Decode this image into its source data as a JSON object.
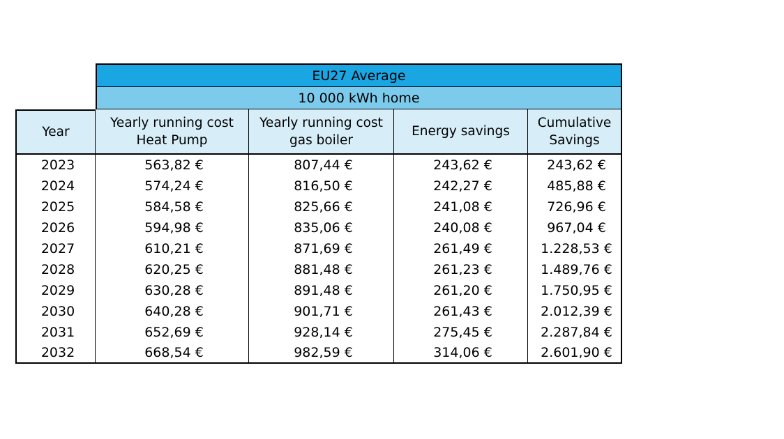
{
  "table": {
    "title": "EU27 Average",
    "subtitle": "10 000 kWh home",
    "headers": [
      "Year",
      "Yearly running cost\nHeat Pump",
      "Yearly running cost\ngas boiler",
      "Energy savings",
      "Cumulative\nSavings"
    ],
    "rows": [
      [
        "2023",
        "563,82 €",
        "807,44 €",
        "243,62 €",
        "243,62 €"
      ],
      [
        "2024",
        "574,24 €",
        "816,50 €",
        "242,27 €",
        "485,88 €"
      ],
      [
        "2025",
        "584,58 €",
        "825,66 €",
        "241,08 €",
        "726,96 €"
      ],
      [
        "2026",
        "594,98 €",
        "835,06 €",
        "240,08 €",
        "967,04 €"
      ],
      [
        "2027",
        "610,21 €",
        "871,69 €",
        "261,49 €",
        "1.228,53 €"
      ],
      [
        "2028",
        "620,25 €",
        "881,48 €",
        "261,23 €",
        "1.489,76 €"
      ],
      [
        "2029",
        "630,28 €",
        "891,48 €",
        "261,20 €",
        "1.750,95 €"
      ],
      [
        "2030",
        "640,28 €",
        "901,71 €",
        "261,43 €",
        "2.012,39 €"
      ],
      [
        "2031",
        "652,69 €",
        "928,14 €",
        "275,45 €",
        "2.287,84 €"
      ],
      [
        "2032",
        "668,54 €",
        "982,59 €",
        "314,06 €",
        "2.601,90 €"
      ]
    ]
  },
  "colors": {
    "title_band": "#1aa6e2",
    "subtitle_band": "#7ccbec",
    "header_fill": "#d7eef9"
  }
}
